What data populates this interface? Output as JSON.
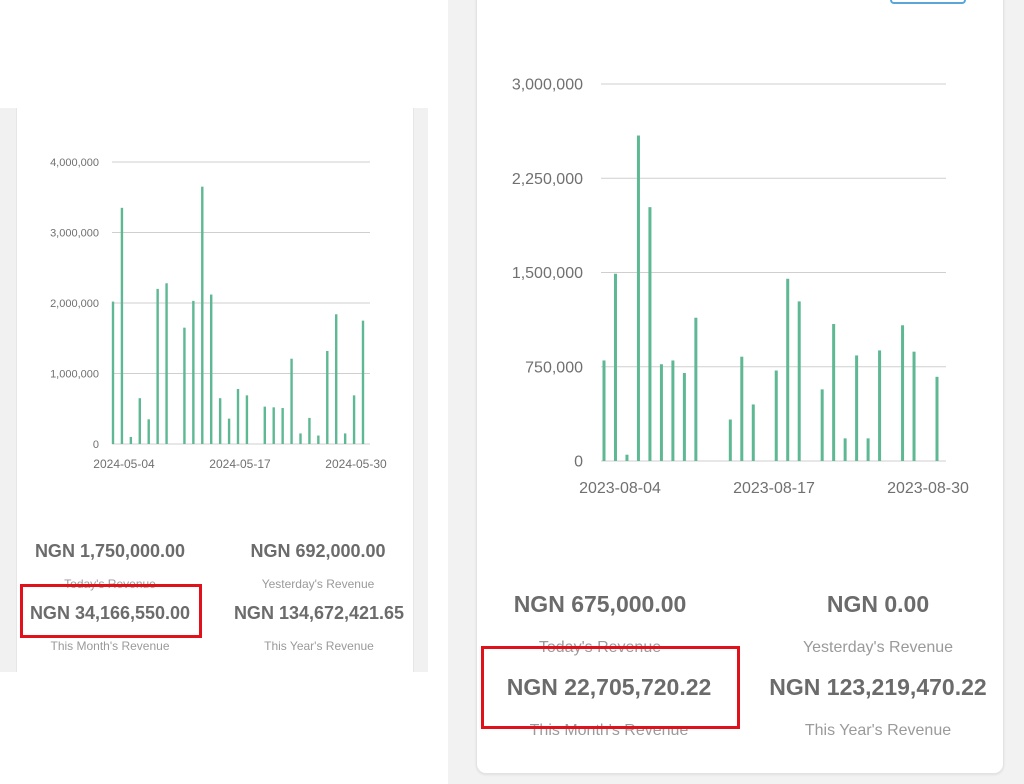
{
  "left": {
    "chart_data": {
      "type": "bar",
      "ylim": [
        0,
        4000000
      ],
      "yticks": [
        0,
        1000000,
        2000000,
        3000000,
        4000000
      ],
      "ytick_labels": [
        "0",
        "1,000,000",
        "2,000,000",
        "3,000,000",
        "4,000,000"
      ],
      "xtick_labels": [
        "2024-05-04",
        "2024-05-17",
        "2024-05-30"
      ],
      "grid": true,
      "values": [
        2020000,
        3350000,
        100000,
        650000,
        350000,
        2200000,
        2280000,
        0,
        1650000,
        2030000,
        3650000,
        2120000,
        650000,
        360000,
        780000,
        690000,
        0,
        530000,
        520000,
        510000,
        1210000,
        150000,
        370000,
        120000,
        1320000,
        1840000,
        150000,
        690000,
        1750000
      ]
    },
    "stats": {
      "today_value": "NGN 1,750,000.00",
      "today_label": "Today's Revenue",
      "yesterday_value": "NGN 692,000.00",
      "yesterday_label": "Yesterday's Revenue",
      "month_value": "NGN 34,166,550.00",
      "month_label": "This Month's Revenue",
      "year_value": "NGN 134,672,421.65",
      "year_label": "This Year's Revenue"
    }
  },
  "right": {
    "chart_data": {
      "type": "bar",
      "ylim": [
        0,
        3000000
      ],
      "yticks": [
        0,
        750000,
        1500000,
        2250000,
        3000000
      ],
      "ytick_labels": [
        "0",
        "750,000",
        "1,500,000",
        "2,250,000",
        "3,000,000"
      ],
      "xtick_labels": [
        "2023-08-04",
        "2023-08-17",
        "2023-08-30"
      ],
      "grid": true,
      "values": [
        800000,
        1490000,
        50000,
        2590000,
        2020000,
        770000,
        800000,
        700000,
        1140000,
        0,
        0,
        330000,
        830000,
        450000,
        0,
        720000,
        1450000,
        1270000,
        0,
        570000,
        1090000,
        180000,
        840000,
        180000,
        880000,
        0,
        1080000,
        870000,
        0,
        670000
      ]
    },
    "stats": {
      "today_value": "NGN 675,000.00",
      "today_label": "Today's Revenue",
      "yesterday_value": "NGN 0.00",
      "yesterday_label": "Yesterday's Revenue",
      "month_value": "NGN 22,705,720.22",
      "month_label": "This Month's Revenue",
      "year_value": "NGN 123,219,470.22",
      "year_label": "This Year's Revenue"
    }
  },
  "colors": {
    "bar": "#5db893",
    "grid": "#cfcfcf",
    "axis_text": "#707070",
    "highlight": "#e0111b"
  }
}
